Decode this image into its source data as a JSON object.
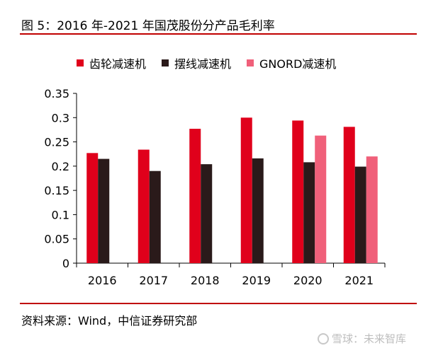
{
  "title": "图 5：2016 年-2021 年国茂股份分产品毛利率",
  "source": "资料来源：Wind，中信证券研究部",
  "watermark": "雪球：未来智库",
  "colors": {
    "rule": "#c00000",
    "series": [
      "#e0001b",
      "#2a1a1a",
      "#f0607a"
    ]
  },
  "chart_data": {
    "type": "bar",
    "categories": [
      "2016",
      "2017",
      "2018",
      "2019",
      "2020",
      "2021"
    ],
    "series": [
      {
        "name": "齿轮减速机",
        "values": [
          0.227,
          0.234,
          0.277,
          0.3,
          0.294,
          0.281
        ]
      },
      {
        "name": "摆线减速机",
        "values": [
          0.215,
          0.19,
          0.204,
          0.216,
          0.208,
          0.199
        ]
      },
      {
        "name": "GNORD减速机",
        "values": [
          null,
          null,
          null,
          null,
          0.263,
          0.22
        ]
      }
    ],
    "yticks": [
      "0",
      "0.05",
      "0.1",
      "0.15",
      "0.2",
      "0.25",
      "0.3",
      "0.35"
    ],
    "ylim": [
      0,
      0.35
    ],
    "legend_position": "top",
    "grid": false
  }
}
